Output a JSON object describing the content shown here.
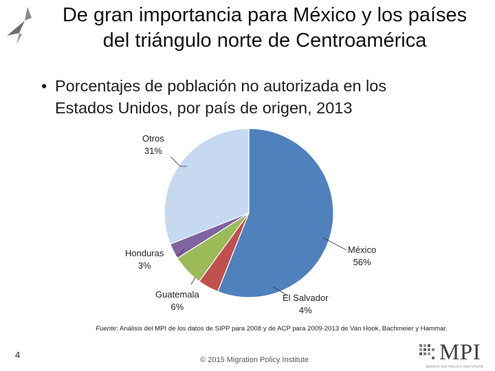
{
  "slide": {
    "title_line1": "De gran importancia para México y los países",
    "title_line2": "del triángulo norte de Centroamérica",
    "bullet_line1": "Porcentajes de población no autorizada en los",
    "bullet_line2": "Estados Unidos, por país de origen, 2013",
    "bullet_symbol": "•",
    "source_label": "Fuente",
    "source_text": ": Análisis del MPI de los datos de SIPP para 2008 y de ACP para 2009-2013 de Van Hook, Bachmeier y Hammar.",
    "slide_number": "4",
    "copyright": "© 2015 Migration Policy Institute",
    "logo_text": "MPI",
    "logo_subtext": "MIGRATION POLICY INSTITUTE"
  },
  "chart_data": {
    "type": "pie",
    "title": "Porcentajes de población no autorizada en los Estados Unidos, por país de origen, 2013",
    "unit": "%",
    "slices": [
      {
        "name": "México",
        "value": 56,
        "label": "56%",
        "color": "#4f81bd"
      },
      {
        "name": "El Salvador",
        "value": 4,
        "label": "4%",
        "color": "#c0504d"
      },
      {
        "name": "Guatemala",
        "value": 6,
        "label": "6%",
        "color": "#9bbb59"
      },
      {
        "name": "Honduras",
        "value": 3,
        "label": "3%",
        "color": "#8064a2"
      },
      {
        "name": "Otros",
        "value": 31,
        "label": "31%",
        "color": "#c6d9f1"
      }
    ],
    "start": "12 o'clock",
    "direction": "clockwise"
  },
  "colors": {
    "accent": "#4f81bd",
    "title_text": "#111111"
  }
}
